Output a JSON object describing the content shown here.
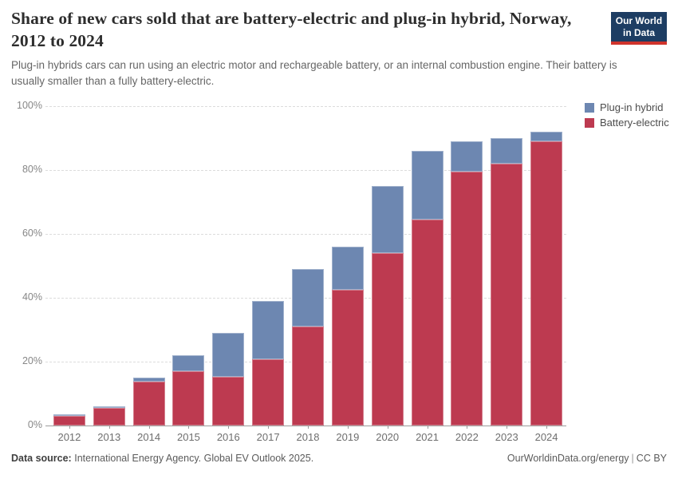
{
  "header": {
    "logo": {
      "line1": "Our World",
      "line2": "in Data",
      "bg_color": "#1d3d63",
      "accent_color": "#d0342c"
    }
  },
  "chart_data": {
    "type": "bar",
    "stacked": true,
    "title": "Share of new cars sold that are battery-electric and plug-in hybrid, Norway, 2012 to 2024",
    "subtitle": "Plug-in hybrids cars can run using an electric motor and rechargeable battery, or an internal combustion engine. Their battery is usually smaller than a fully battery-electric.",
    "categories": [
      "2012",
      "2013",
      "2014",
      "2015",
      "2016",
      "2017",
      "2018",
      "2019",
      "2020",
      "2021",
      "2022",
      "2023",
      "2024"
    ],
    "series": [
      {
        "name": "Plug-in hybrid",
        "color": "#6d87b1",
        "values": [
          0.4,
          0.5,
          1.2,
          5.0,
          13.7,
          18.3,
          17.9,
          13.6,
          20.9,
          21.6,
          9.4,
          7.9,
          3.0
        ]
      },
      {
        "name": "Battery-electric",
        "color": "#bd3a50",
        "values": [
          3.0,
          5.5,
          13.8,
          17.1,
          15.3,
          20.7,
          31.1,
          42.4,
          54.1,
          64.4,
          79.6,
          82.1,
          89.0
        ]
      }
    ],
    "xlabel": "",
    "ylabel": "",
    "ylim": [
      0,
      100
    ],
    "yticks": [
      0,
      20,
      40,
      60,
      80,
      100
    ],
    "ytick_suffix": "%",
    "grid": "horizontal-dashed",
    "legend_position": "top-right"
  },
  "footer": {
    "source_label": "Data source:",
    "source_text": "International Energy Agency. Global EV Outlook 2025.",
    "link_label": "OurWorldinData.org/energy",
    "separator": "|",
    "license": "CC BY"
  }
}
